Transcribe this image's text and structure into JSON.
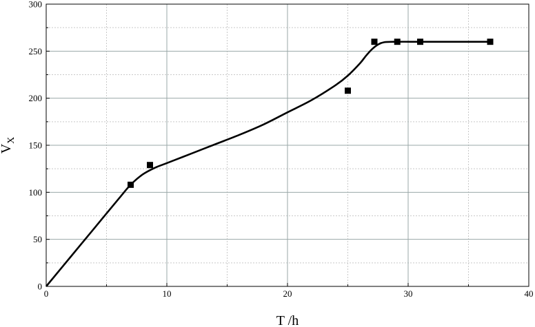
{
  "chart_data": {
    "type": "scatter",
    "xlabel": "T /h",
    "ylabel": {
      "main": "V",
      "sub": "X"
    },
    "xlim": [
      0,
      40
    ],
    "ylim": [
      0,
      300
    ],
    "x_ticks": [
      0,
      10,
      20,
      30,
      40
    ],
    "y_ticks": [
      0,
      50,
      100,
      150,
      200,
      250,
      300
    ],
    "grid": true,
    "minor_grid": true,
    "series": [
      {
        "kind": "points",
        "marker": "square",
        "color": "#000000",
        "x": [
          7.0,
          8.6,
          25.0,
          27.2,
          29.1,
          31.0,
          36.8
        ],
        "y": [
          108,
          129,
          208,
          260,
          260,
          260,
          260
        ]
      },
      {
        "kind": "fit-line",
        "color": "#000000",
        "x": [
          0,
          2,
          4,
          6,
          7,
          8,
          9,
          10,
          12,
          14,
          16,
          18,
          20,
          22,
          24,
          25,
          26,
          26.5,
          27,
          27.5,
          28,
          29,
          31,
          33,
          37
        ],
        "y": [
          0,
          31,
          62,
          93,
          108,
          119,
          126,
          131,
          141,
          151,
          161,
          172,
          185,
          198,
          214,
          224,
          237,
          245,
          252,
          257,
          259.5,
          260,
          260,
          260,
          260
        ]
      }
    ]
  }
}
